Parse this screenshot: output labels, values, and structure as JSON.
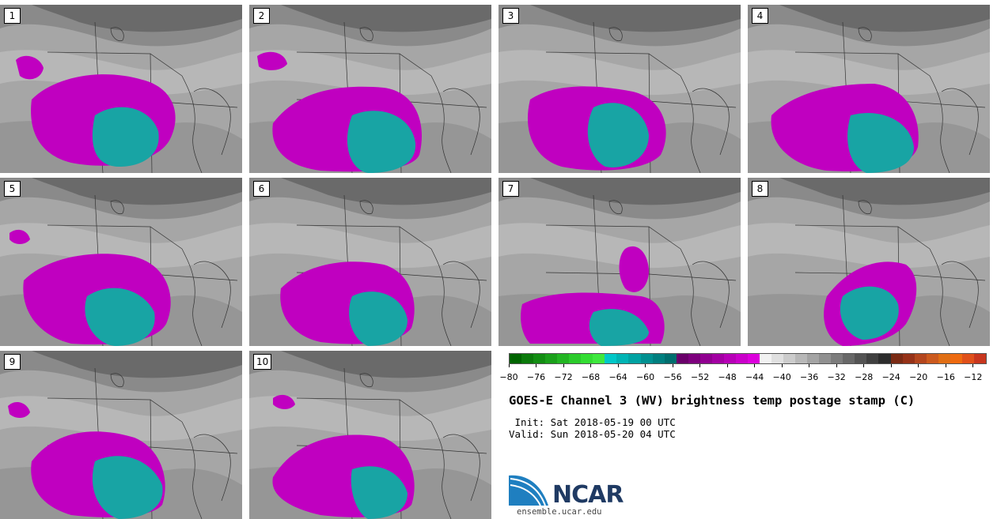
{
  "panels": [
    {
      "label": "1"
    },
    {
      "label": "2"
    },
    {
      "label": "3"
    },
    {
      "label": "4"
    },
    {
      "label": "5"
    },
    {
      "label": "6"
    },
    {
      "label": "7"
    },
    {
      "label": "8"
    },
    {
      "label": "9"
    },
    {
      "label": "10"
    }
  ],
  "colorbar": {
    "min": -80,
    "max": -10,
    "tick_labels": [
      "-80",
      "-76",
      "-72",
      "-68",
      "-64",
      "-60",
      "-56",
      "-52",
      "-48",
      "-44",
      "-40",
      "-36",
      "-32",
      "-28",
      "-24",
      "-20",
      "-16",
      "-12"
    ],
    "tick_values": [
      -80,
      -76,
      -72,
      -68,
      -64,
      -60,
      -56,
      -52,
      -48,
      -44,
      -40,
      -36,
      -32,
      -28,
      -24,
      -20,
      -16,
      -12
    ],
    "colors": [
      "#006400",
      "#0b7a0b",
      "#128d12",
      "#1aa01a",
      "#22b522",
      "#2bcb2b",
      "#33dd33",
      "#3ee83e",
      "#00c8c8",
      "#00b4b4",
      "#00a2a2",
      "#009090",
      "#007f7f",
      "#006e6e",
      "#6a006a",
      "#7d007d",
      "#900090",
      "#a300a3",
      "#b700b7",
      "#ca00ca",
      "#dd00dd",
      "#f2f2f2",
      "#e0e0e0",
      "#cccccc",
      "#b8b8b8",
      "#a4a4a4",
      "#909090",
      "#7c7c7c",
      "#686868",
      "#545454",
      "#404040",
      "#2c2c2c",
      "#7a2a14",
      "#963218",
      "#b4461e",
      "#cc5a1e",
      "#e06e14",
      "#ee6a10",
      "#e0501a",
      "#c8361e"
    ]
  },
  "title": "GOES-E Channel 3 (WV) brightness temp postage stamp (C)",
  "init": " Init: Sat 2018-05-19 00 UTC",
  "valid": "Valid: Sun 2018-05-20 04 UTC",
  "logo": {
    "name": "NCAR",
    "url": "ensemble.ucar.edu"
  }
}
